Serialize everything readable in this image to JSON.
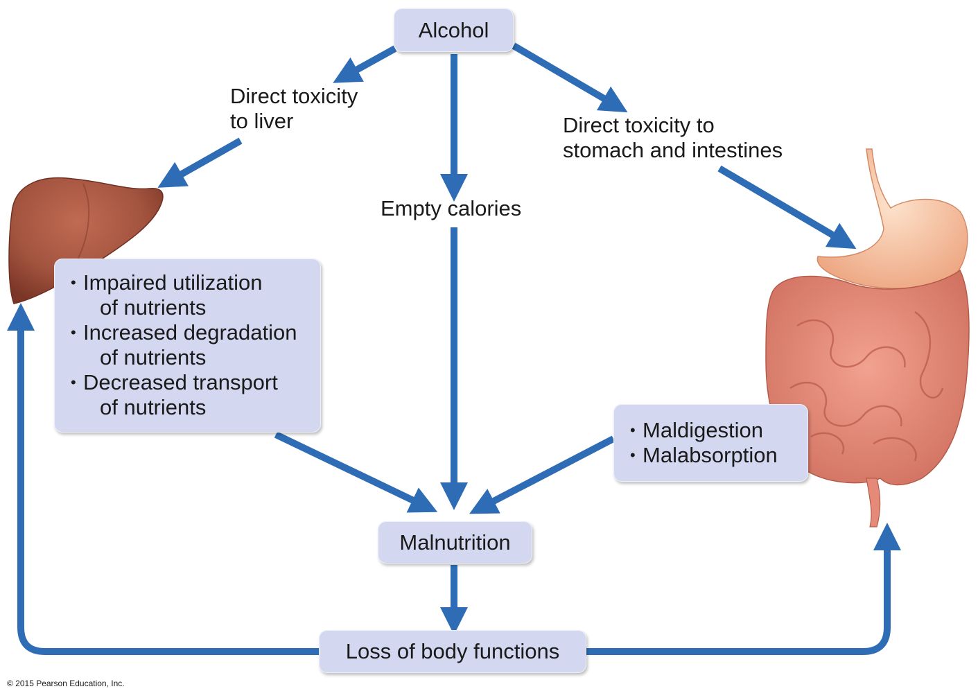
{
  "nodes": {
    "alcohol": "Alcohol",
    "direct_toxicity_liver": [
      "Direct toxicity",
      "to liver"
    ],
    "direct_toxicity_gi": [
      "Direct toxicity to",
      "stomach and intestines"
    ],
    "empty_calories": "Empty calories",
    "liver_effects": [
      {
        "line1": "Impaired utilization",
        "line2": "of nutrients"
      },
      {
        "line1": "Increased degradation",
        "line2": "of nutrients"
      },
      {
        "line1": "Decreased transport",
        "line2": "of nutrients"
      }
    ],
    "gi_effects": [
      "Maldigestion",
      "Malabsorption"
    ],
    "malnutrition": "Malnutrition",
    "loss_of_body_functions": "Loss of body functions"
  },
  "colors": {
    "arrow": "#2e6db5",
    "box_fill": "#d3d8f0",
    "liver": "#a3543f",
    "stomach": "#f2b58e",
    "intestine": "#e58a78"
  },
  "copyright": "© 2015 Pearson Education, Inc."
}
